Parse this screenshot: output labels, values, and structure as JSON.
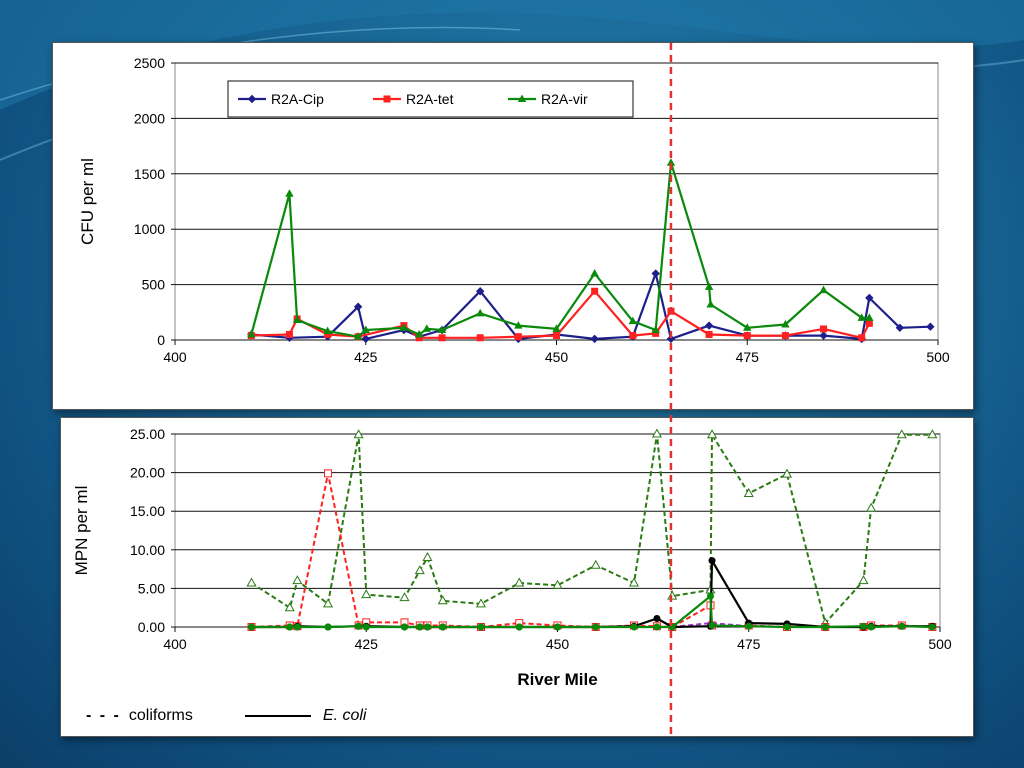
{
  "colors": {
    "navy": "#1f1f8c",
    "red": "#ff2020",
    "green": "#0a8a0a",
    "dark_green": "#2b7a14",
    "black": "#000000",
    "divider": "#e53030",
    "purple": "#9b30c8"
  },
  "chart_data": [
    {
      "type": "line",
      "ylabel": "CFU per ml",
      "xlabel": "",
      "xlim": [
        400,
        500
      ],
      "ylim": [
        0,
        2500
      ],
      "x_ticks": [
        "400",
        "425",
        "450",
        "475",
        "500"
      ],
      "y_ticks": [
        "0",
        "500",
        "1000",
        "1500",
        "2000",
        "2500"
      ],
      "grid": true,
      "legend": [
        "R2A-Cip",
        "R2A-tet",
        "R2A-vir"
      ],
      "legend_position": "top-left",
      "series": [
        {
          "name": "R2A-Cip",
          "color": "#1f1f8c",
          "marker": "diamond",
          "points": [
            [
              410,
              50
            ],
            [
              415,
              20
            ],
            [
              420,
              30
            ],
            [
              424,
              300
            ],
            [
              425,
              10
            ],
            [
              430,
              90
            ],
            [
              432,
              30
            ],
            [
              435,
              90
            ],
            [
              440,
              440
            ],
            [
              445,
              10
            ],
            [
              450,
              50
            ],
            [
              455,
              10
            ],
            [
              460,
              30
            ],
            [
              463,
              600
            ],
            [
              465,
              10
            ],
            [
              470,
              130
            ],
            [
              475,
              40
            ],
            [
              480,
              40
            ],
            [
              485,
              40
            ],
            [
              490,
              10
            ],
            [
              491,
              380
            ],
            [
              495,
              110
            ],
            [
              499,
              120
            ]
          ]
        },
        {
          "name": "R2A-tet",
          "color": "#ff2020",
          "marker": "square",
          "points": [
            [
              410,
              40
            ],
            [
              415,
              50
            ],
            [
              416,
              190
            ],
            [
              420,
              50
            ],
            [
              424,
              30
            ],
            [
              430,
              130
            ],
            [
              432,
              20
            ],
            [
              435,
              20
            ],
            [
              440,
              20
            ],
            [
              445,
              30
            ],
            [
              450,
              40
            ],
            [
              455,
              440
            ],
            [
              460,
              40
            ],
            [
              463,
              60
            ],
            [
              465,
              260
            ],
            [
              470,
              50
            ],
            [
              475,
              40
            ],
            [
              480,
              40
            ],
            [
              485,
              100
            ],
            [
              490,
              20
            ],
            [
              491,
              150
            ]
          ]
        },
        {
          "name": "R2A-vir",
          "color": "#0a8a0a",
          "marker": "triangle",
          "points": [
            [
              410,
              50
            ],
            [
              415,
              1320
            ],
            [
              416,
              180
            ],
            [
              420,
              80
            ],
            [
              424,
              30
            ],
            [
              425,
              90
            ],
            [
              430,
              110
            ],
            [
              432,
              50
            ],
            [
              433,
              100
            ],
            [
              435,
              90
            ],
            [
              440,
              240
            ],
            [
              445,
              130
            ],
            [
              450,
              100
            ],
            [
              455,
              600
            ],
            [
              460,
              170
            ],
            [
              463,
              90
            ],
            [
              465,
              1600
            ],
            [
              470,
              480
            ],
            [
              470.2,
              320
            ],
            [
              475,
              110
            ],
            [
              480,
              140
            ],
            [
              485,
              450
            ],
            [
              490,
              200
            ],
            [
              491,
              200
            ]
          ]
        }
      ],
      "divider_x": 465
    },
    {
      "type": "line",
      "ylabel": "MPN per ml",
      "xlabel": "River Mile",
      "xlim": [
        400,
        500
      ],
      "ylim": [
        0,
        25
      ],
      "x_ticks": [
        "400",
        "425",
        "450",
        "475",
        "500"
      ],
      "y_ticks": [
        "0.00",
        "5.00",
        "10.00",
        "15.00",
        "20.00",
        "25.00"
      ],
      "grid": true,
      "legend": [
        "coliforms",
        "E. coli"
      ],
      "legend_position": "bottom-left",
      "series": [
        {
          "color": "#2b7a14",
          "style": "dashed",
          "marker": "open-triangle",
          "points": [
            [
              410,
              5.7
            ],
            [
              415,
              2.5
            ],
            [
              416,
              6.0
            ],
            [
              420,
              3.0
            ],
            [
              424,
              24.9
            ],
            [
              425,
              4.2
            ],
            [
              430,
              3.8
            ],
            [
              432,
              7.3
            ],
            [
              433,
              9.0
            ],
            [
              435,
              3.4
            ],
            [
              440,
              3.0
            ],
            [
              445,
              5.7
            ],
            [
              450,
              5.4
            ],
            [
              455,
              8.0
            ],
            [
              460,
              5.7
            ],
            [
              463,
              25
            ],
            [
              465,
              4.0
            ],
            [
              470,
              4.8
            ],
            [
              470.2,
              24.9
            ],
            [
              475,
              17.3
            ],
            [
              480,
              19.8
            ],
            [
              485,
              0.5
            ],
            [
              490,
              6.0
            ],
            [
              491,
              15.4
            ],
            [
              495,
              24.9
            ],
            [
              499,
              24.9
            ]
          ]
        },
        {
          "color": "#ff2020",
          "style": "dashed",
          "marker": "open-square",
          "points": [
            [
              410,
              0
            ],
            [
              415,
              0.2
            ],
            [
              416,
              0.1
            ],
            [
              420,
              19.9
            ],
            [
              424,
              0.2
            ],
            [
              425,
              0.6
            ],
            [
              430,
              0.6
            ],
            [
              432,
              0.2
            ],
            [
              433,
              0.2
            ],
            [
              435,
              0.2
            ],
            [
              440,
              0
            ],
            [
              445,
              0.5
            ],
            [
              450,
              0.2
            ],
            [
              455,
              0
            ],
            [
              460,
              0.2
            ],
            [
              463,
              0.1
            ],
            [
              465,
              0
            ],
            [
              470,
              2.8
            ],
            [
              470.2,
              0.2
            ],
            [
              475,
              0.2
            ],
            [
              480,
              0
            ],
            [
              485,
              0
            ],
            [
              490,
              0
            ],
            [
              491,
              0.2
            ],
            [
              495,
              0.2
            ],
            [
              499,
              0
            ]
          ]
        },
        {
          "color": "#9b30c8",
          "style": "dashed",
          "marker": "none",
          "points": [
            [
              465,
              0
            ],
            [
              470,
              0.5
            ],
            [
              475,
              0.1
            ]
          ]
        },
        {
          "color": "#000000",
          "style": "solid",
          "marker": "filled-circle",
          "points": [
            [
              410,
              0
            ],
            [
              415,
              0
            ],
            [
              416,
              0.1
            ],
            [
              420,
              0
            ],
            [
              424,
              0.1
            ],
            [
              425,
              0.1
            ],
            [
              430,
              0
            ],
            [
              432,
              0
            ],
            [
              433,
              0
            ],
            [
              435,
              0
            ],
            [
              440,
              0
            ],
            [
              445,
              0
            ],
            [
              450,
              0
            ],
            [
              455,
              0
            ],
            [
              460,
              0.1
            ],
            [
              463,
              1.1
            ],
            [
              465,
              0
            ],
            [
              470,
              0.1
            ],
            [
              470.2,
              8.6
            ],
            [
              475,
              0.5
            ],
            [
              480,
              0.4
            ],
            [
              485,
              0
            ],
            [
              490,
              0
            ],
            [
              491,
              0.1
            ],
            [
              495,
              0.1
            ],
            [
              499,
              0.1
            ]
          ]
        },
        {
          "color": "#0a8a0a",
          "style": "solid",
          "marker": "filled-circle",
          "points": [
            [
              410,
              0
            ],
            [
              415,
              0
            ],
            [
              416,
              0
            ],
            [
              420,
              0
            ],
            [
              424,
              0.1
            ],
            [
              425,
              0
            ],
            [
              430,
              0
            ],
            [
              432,
              0
            ],
            [
              433,
              0
            ],
            [
              435,
              0
            ],
            [
              440,
              0
            ],
            [
              445,
              0
            ],
            [
              450,
              0
            ],
            [
              455,
              0
            ],
            [
              460,
              0
            ],
            [
              463,
              0
            ],
            [
              465,
              0
            ],
            [
              470,
              4.0
            ],
            [
              470.2,
              0.2
            ],
            [
              475,
              0.1
            ],
            [
              480,
              0
            ],
            [
              485,
              0
            ],
            [
              490,
              0.1
            ],
            [
              491,
              0
            ],
            [
              495,
              0.1
            ],
            [
              499,
              0
            ]
          ]
        }
      ],
      "divider_x": 465
    }
  ],
  "bottom_legend": {
    "coliforms_symbol": "- - -",
    "coliforms_label": "coliforms",
    "ecoli_label": "E. coli"
  }
}
